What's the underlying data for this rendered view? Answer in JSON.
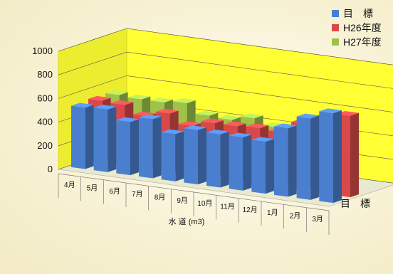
{
  "chart_data": {
    "type": "bar",
    "categories": [
      "4月",
      "5月",
      "6月",
      "7月",
      "8月",
      "9月",
      "10月",
      "11月",
      "12月",
      "1月",
      "2月",
      "3月"
    ],
    "series": [
      {
        "name": "目　標",
        "color": "#4a7fcf",
        "values": [
          520,
          530,
          450,
          500,
          400,
          460,
          450,
          450,
          440,
          580,
          690,
          760
        ]
      },
      {
        "name": "H26年度",
        "color": "#d9494a",
        "values": [
          530,
          520,
          450,
          500,
          420,
          470,
          470,
          480,
          470,
          570,
          640,
          690
        ]
      },
      {
        "name": "H27年度",
        "color": "#9ec24a",
        "values": [
          530,
          520,
          520,
          540,
          460,
          450,
          490,
          440,
          370,
          470,
          330,
          0
        ]
      }
    ],
    "xlabel": "水 道 (m3)",
    "series_axis_label": "目　標",
    "yticks": [
      "0",
      "200",
      "400",
      "600",
      "800",
      "1000"
    ],
    "ylim": [
      0,
      1000
    ],
    "wall_color": "#ffff33",
    "grid": true,
    "legend_position": "top-right"
  }
}
